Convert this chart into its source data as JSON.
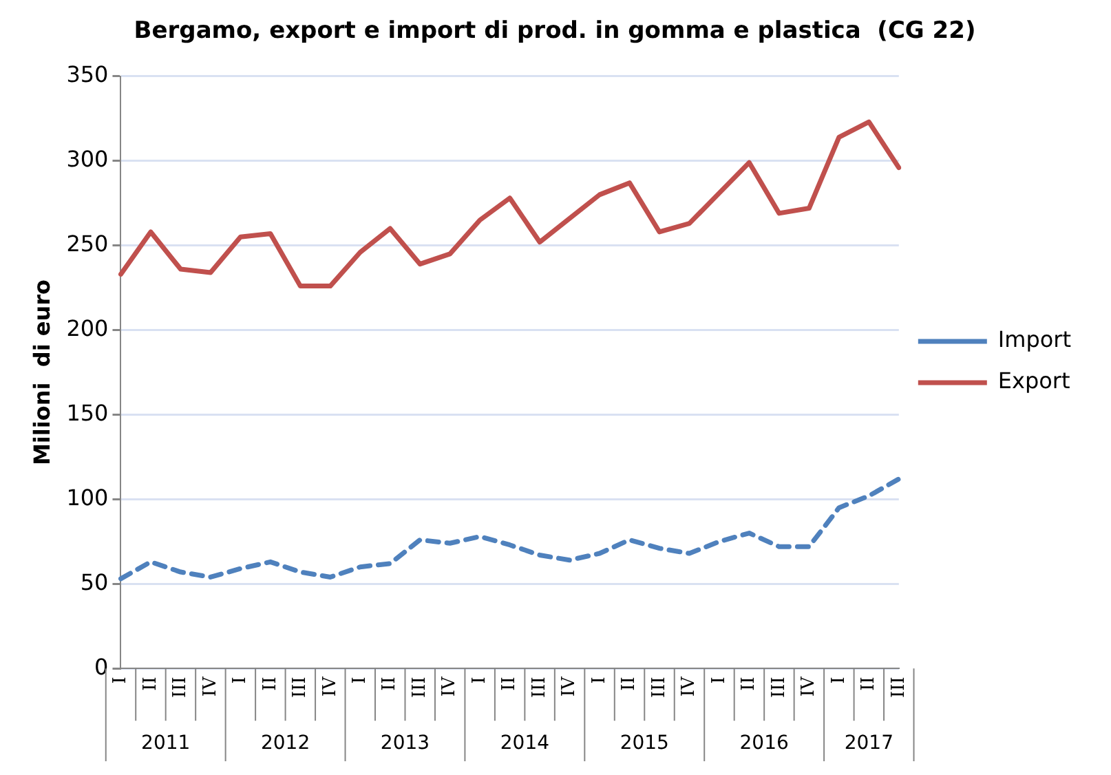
{
  "chart_data": {
    "type": "line",
    "title": "Bergamo, export e import di prod. in gomma e plastica  (CG 22)",
    "ylabel": "Milioni  di euro",
    "categories": [
      "I",
      "II",
      "III",
      "IV",
      "I",
      "II",
      "III",
      "IV",
      "I",
      "II",
      "III",
      "IV",
      "I",
      "II",
      "III",
      "IV",
      "I",
      "II",
      "III",
      "IV",
      "I",
      "II",
      "III",
      "IV",
      "I",
      "II",
      "III"
    ],
    "annotations": [
      "2011",
      "2012",
      "2013",
      "2014",
      "2015",
      "2016",
      "2017"
    ],
    "series": [
      {
        "name": "Import",
        "color": "#4f81bd",
        "line_style": "dashed",
        "values": [
          53,
          63,
          57,
          54,
          59,
          63,
          57,
          54,
          60,
          62,
          76,
          74,
          78,
          73,
          67,
          64,
          68,
          76,
          71,
          68,
          75,
          80,
          72,
          72,
          95,
          102,
          112
        ]
      },
      {
        "name": "Export",
        "color": "#c0504d",
        "line_style": "solid",
        "values": [
          233,
          258,
          236,
          234,
          255,
          257,
          226,
          226,
          246,
          260,
          239,
          245,
          265,
          278,
          252,
          266,
          280,
          287,
          258,
          263,
          281,
          299,
          269,
          272,
          314,
          323,
          296
        ]
      }
    ],
    "ylim": [
      0,
      350
    ],
    "yticks": [
      0,
      50,
      100,
      150,
      200,
      250,
      300,
      350
    ],
    "grid": "y",
    "legend": "right",
    "marker": "none"
  }
}
